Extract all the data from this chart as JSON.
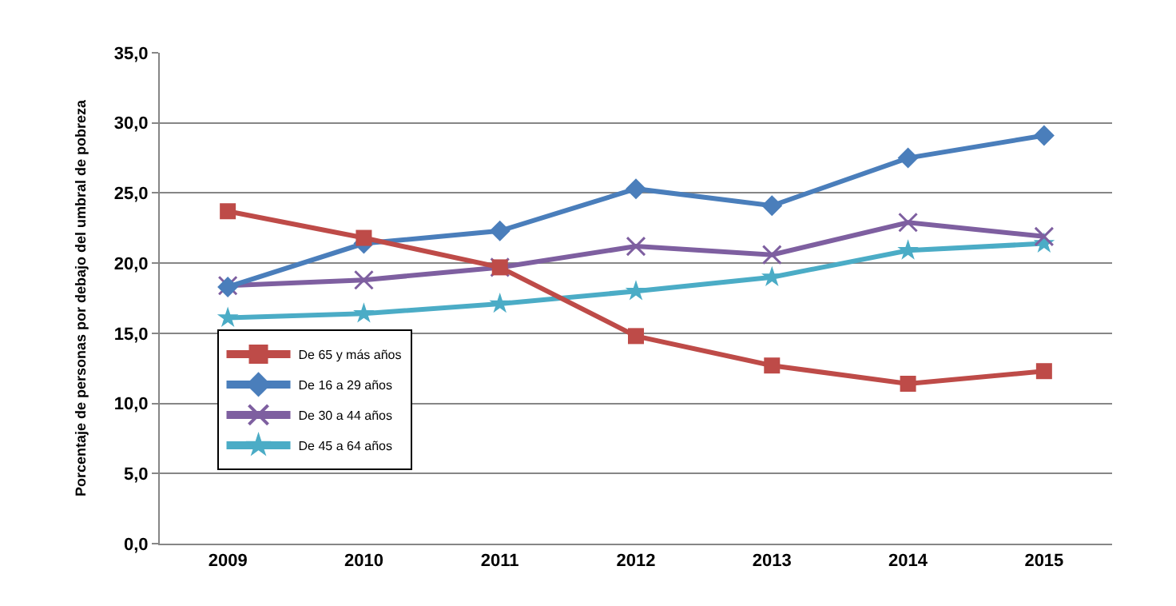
{
  "chart_data": {
    "type": "line",
    "ylabel": "Porcentaje de personas por debajo del umbral de pobreza",
    "categories": [
      "2009",
      "2010",
      "2011",
      "2012",
      "2013",
      "2014",
      "2015"
    ],
    "series": [
      {
        "name": "De 65 y más años",
        "color": "#be4b48",
        "marker": "square",
        "values": [
          23.7,
          21.8,
          19.7,
          14.8,
          12.7,
          11.4,
          12.3
        ]
      },
      {
        "name": "De 16 a 29 años",
        "color": "#4a7ebb",
        "marker": "diamond",
        "values": [
          18.3,
          21.4,
          22.3,
          25.3,
          24.1,
          27.5,
          29.1
        ]
      },
      {
        "name": "De 30 a 44 años",
        "color": "#7e5fa0",
        "marker": "cross",
        "values": [
          18.4,
          18.8,
          19.7,
          21.2,
          20.6,
          22.9,
          21.9
        ]
      },
      {
        "name": "De 45 a 64 años",
        "color": "#4bacc6",
        "marker": "star",
        "values": [
          16.1,
          16.4,
          17.1,
          18.0,
          19.0,
          20.9,
          21.4
        ]
      }
    ],
    "ylim": [
      0,
      35
    ],
    "yticks": [
      {
        "value": 0,
        "label": "0,0"
      },
      {
        "value": 5,
        "label": "5,0"
      },
      {
        "value": 10,
        "label": "10,0"
      },
      {
        "value": 15,
        "label": "15,0"
      },
      {
        "value": 20,
        "label": "20,0"
      },
      {
        "value": 25,
        "label": "25,0"
      },
      {
        "value": 30,
        "label": "30,0"
      },
      {
        "value": 35,
        "label": "35,0"
      }
    ],
    "grid": "y",
    "legend": "bottom left",
    "line_style": "solid"
  }
}
